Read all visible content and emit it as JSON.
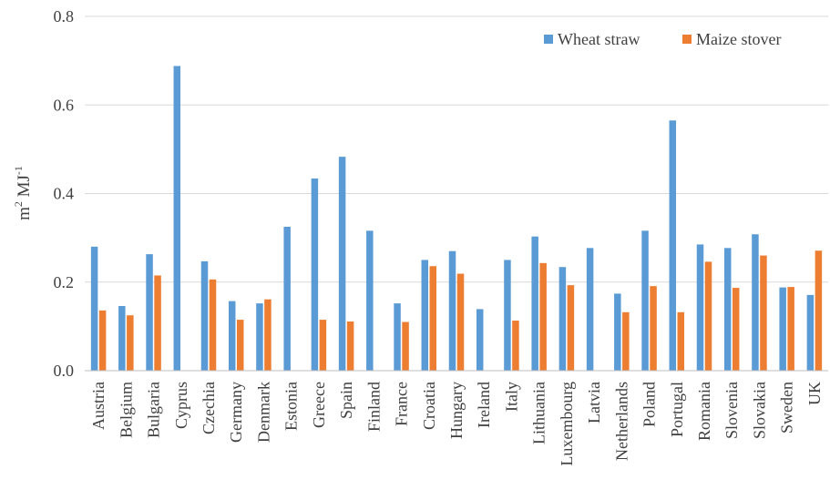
{
  "chart_data": {
    "type": "bar",
    "title": "",
    "xlabel": "",
    "ylabel_main": "m",
    "ylabel_sup1": "2",
    "ylabel_mid": " MJ",
    "ylabel_sup2": "-1",
    "ylim": [
      0,
      0.8
    ],
    "yticks": [
      "0.0",
      "0.2",
      "0.4",
      "0.6",
      "0.8"
    ],
    "grid": true,
    "legend_position": "top-right",
    "categories": [
      "Austria",
      "Belgium",
      "Bulgaria",
      "Cyprus",
      "Czechia",
      "Germany",
      "Denmark",
      "Estonia",
      "Greece",
      "Spain",
      "Finland",
      "France",
      "Croatia",
      "Hungary",
      "Ireland",
      "Italy",
      "Lithuania",
      "Luxembourg",
      "Latvia",
      "Netherlands",
      "Poland",
      "Portugal",
      "Romania",
      "Slovenia",
      "Slovakia",
      "Sweden",
      "UK"
    ],
    "series": [
      {
        "name": "Wheat straw",
        "color": "#5B9BD5",
        "values": [
          0.28,
          0.146,
          0.263,
          0.688,
          0.247,
          0.157,
          0.152,
          0.325,
          0.434,
          0.483,
          0.316,
          0.152,
          0.25,
          0.27,
          0.139,
          0.25,
          0.303,
          0.234,
          0.277,
          0.174,
          0.316,
          0.565,
          0.285,
          0.277,
          0.308,
          0.188,
          0.171
        ]
      },
      {
        "name": "Maize stover",
        "color": "#ED7D31",
        "values": [
          0.136,
          0.125,
          0.215,
          null,
          0.206,
          0.115,
          0.161,
          null,
          0.115,
          0.111,
          null,
          0.11,
          0.236,
          0.219,
          null,
          0.113,
          0.243,
          0.193,
          null,
          0.132,
          0.191,
          0.132,
          0.246,
          0.187,
          0.26,
          0.189,
          0.271
        ]
      }
    ]
  }
}
